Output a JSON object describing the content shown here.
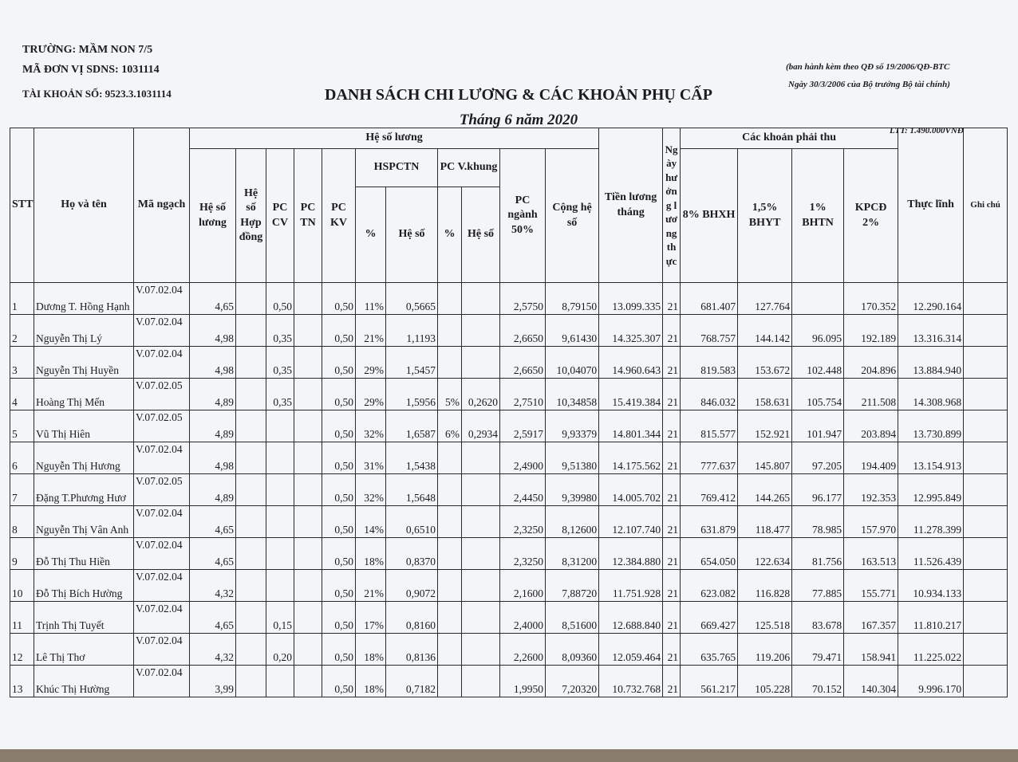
{
  "header": {
    "school": "TRƯỜNG: MẦM NON 7/5",
    "unit_code": "MÃ ĐƠN VỊ SDNS: 1031114",
    "account": "TÀI KHOẢN SỐ: 9523.3.1031114",
    "note_1": "(ban hành kèm theo QĐ số 19/2006/QĐ-BTC",
    "note_2": "Ngày 30/3/2006 của Bộ trưởng Bộ tài chính)",
    "title": "DANH SÁCH CHI LƯƠNG & CÁC KHOẢN PHỤ CẤP",
    "subtitle": "Tháng 6 năm 2020",
    "ltt": "LTT: 1.490.000VNĐ"
  },
  "table": {
    "groups": {
      "salary": "Hệ số lương",
      "hspctn": "HSPCTN",
      "vkhung": "PC V.khung",
      "deductions": "Các khoản phải thu"
    },
    "columns": [
      "STT",
      "Họ và tên",
      "Mã ngạch",
      "Hệ số lương",
      "Hệ số Hợp đồng",
      "PC CV",
      "PC TN",
      "PC KV",
      "%",
      "Hệ số",
      "%",
      "Hệ số",
      "PC ngành 50%",
      "Cộng hệ số",
      "Tiền lương tháng",
      "Ngày hưởng lương thực",
      "8% BHXH",
      "1,5% BHYT",
      "1% BHTN",
      "KPCĐ 2%",
      "Thực lĩnh",
      "Ghi chú"
    ],
    "rows": [
      [
        "1",
        "Dương T. Hồng Hạnh",
        "V.07.02.04",
        "4,65",
        null,
        "0,50",
        null,
        "0,50",
        "11%",
        "0,5665",
        null,
        null,
        "2,5750",
        "8,79150",
        "13.099.335",
        "21",
        "681.407",
        "127.764",
        null,
        "170.352",
        "12.290.164",
        null
      ],
      [
        "2",
        "Nguyễn Thị Lý",
        "V.07.02.04",
        "4,98",
        null,
        "0,35",
        null,
        "0,50",
        "21%",
        "1,1193",
        null,
        null,
        "2,6650",
        "9,61430",
        "14.325.307",
        "21",
        "768.757",
        "144.142",
        "96.095",
        "192.189",
        "13.316.314",
        null
      ],
      [
        "3",
        "Nguyễn Thị Huyền",
        "V.07.02.04",
        "4,98",
        null,
        "0,35",
        null,
        "0,50",
        "29%",
        "1,5457",
        null,
        null,
        "2,6650",
        "10,04070",
        "14.960.643",
        "21",
        "819.583",
        "153.672",
        "102.448",
        "204.896",
        "13.884.940",
        null
      ],
      [
        "4",
        "Hoàng Thị Mến",
        "V.07.02.05",
        "4,89",
        null,
        "0,35",
        null,
        "0,50",
        "29%",
        "1,5956",
        "5%",
        "0,2620",
        "2,7510",
        "10,34858",
        "15.419.384",
        "21",
        "846.032",
        "158.631",
        "105.754",
        "211.508",
        "14.308.968",
        null
      ],
      [
        "5",
        "Vũ Thị Hiên",
        "V.07.02.05",
        "4,89",
        null,
        null,
        null,
        "0,50",
        "32%",
        "1,6587",
        "6%",
        "0,2934",
        "2,5917",
        "9,93379",
        "14.801.344",
        "21",
        "815.577",
        "152.921",
        "101.947",
        "203.894",
        "13.730.899",
        null
      ],
      [
        "6",
        "Nguyễn Thị Hương",
        "V.07.02.04",
        "4,98",
        null,
        null,
        null,
        "0,50",
        "31%",
        "1,5438",
        null,
        null,
        "2,4900",
        "9,51380",
        "14.175.562",
        "21",
        "777.637",
        "145.807",
        "97.205",
        "194.409",
        "13.154.913",
        null
      ],
      [
        "7",
        "Đặng T.Phương Hươ",
        "V.07.02.05",
        "4,89",
        null,
        null,
        null,
        "0,50",
        "32%",
        "1,5648",
        null,
        null,
        "2,4450",
        "9,39980",
        "14.005.702",
        "21",
        "769.412",
        "144.265",
        "96.177",
        "192.353",
        "12.995.849",
        null
      ],
      [
        "8",
        "Nguyễn Thị Vân Anh",
        "V.07.02.04",
        "4,65",
        null,
        null,
        null,
        "0,50",
        "14%",
        "0,6510",
        null,
        null,
        "2,3250",
        "8,12600",
        "12.107.740",
        "21",
        "631.879",
        "118.477",
        "78.985",
        "157.970",
        "11.278.399",
        null
      ],
      [
        "9",
        "Đỗ Thị Thu Hiền",
        "V.07.02.04",
        "4,65",
        null,
        null,
        null,
        "0,50",
        "18%",
        "0,8370",
        null,
        null,
        "2,3250",
        "8,31200",
        "12.384.880",
        "21",
        "654.050",
        "122.634",
        "81.756",
        "163.513",
        "11.526.439",
        null
      ],
      [
        "10",
        "Đỗ Thị Bích Hường",
        "V.07.02.04",
        "4,32",
        null,
        null,
        null,
        "0,50",
        "21%",
        "0,9072",
        null,
        null,
        "2,1600",
        "7,88720",
        "11.751.928",
        "21",
        "623.082",
        "116.828",
        "77.885",
        "155.771",
        "10.934.133",
        null
      ],
      [
        "11",
        "Trịnh Thị Tuyết",
        "V.07.02.04",
        "4,65",
        null,
        "0,15",
        null,
        "0,50",
        "17%",
        "0,8160",
        null,
        null,
        "2,4000",
        "8,51600",
        "12.688.840",
        "21",
        "669.427",
        "125.518",
        "83.678",
        "167.357",
        "11.810.217",
        null
      ],
      [
        "12",
        "Lê Thị Thơ",
        "V.07.02.04",
        "4,32",
        null,
        "0,20",
        null,
        "0,50",
        "18%",
        "0,8136",
        null,
        null,
        "2,2600",
        "8,09360",
        "12.059.464",
        "21",
        "635.765",
        "119.206",
        "79.471",
        "158.941",
        "11.225.022",
        null
      ],
      [
        "13",
        "Khúc Thị Hường",
        "V.07.02.04",
        "3,99",
        null,
        null,
        null,
        "0,50",
        "18%",
        "0,7182",
        null,
        null,
        "1,9950",
        "7,20320",
        "10.732.768",
        "21",
        "561.217",
        "105.228",
        "70.152",
        "140.304",
        "9.996.170",
        null
      ]
    ]
  }
}
